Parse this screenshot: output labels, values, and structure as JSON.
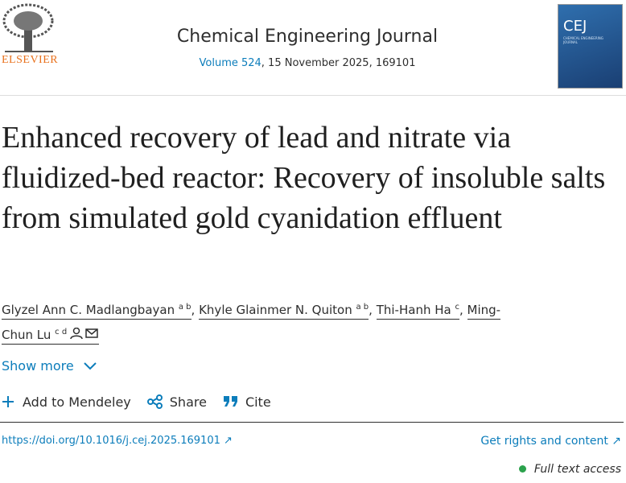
{
  "header": {
    "publisher": "ELSEVIER",
    "journal": "Chemical Engineering Journal",
    "volume_link": "Volume 524",
    "issue_info": ", 15 November 2025, 169101",
    "cover_title": "CEJ",
    "cover_subtitle": "CHEMICAL ENGINEERING JOURNAL"
  },
  "article": {
    "title": "Enhanced recovery of lead and nitrate via fluidized-bed reactor: Recovery of insoluble salts from simulated gold cyanidation effluent",
    "authors": [
      {
        "name": "Glyzel Ann C. Madlangbayan",
        "affiliations": "a b",
        "separator": ","
      },
      {
        "name": "Khyle Glainmer N. Quiton",
        "affiliations": "a b",
        "separator": ","
      },
      {
        "name": "Thi-Hanh Ha",
        "affiliations": "c",
        "separator": ","
      },
      {
        "name": "Ming-Chun Lu",
        "affiliations": "c d"
      }
    ],
    "show_more": "Show more"
  },
  "actions": [
    "Add to Mendeley",
    "Share",
    "Cite"
  ],
  "links": {
    "doi": "https://doi.org/10.1016/j.cej.2025.169101",
    "rights": "Get rights and content"
  },
  "access": "Full text access"
}
